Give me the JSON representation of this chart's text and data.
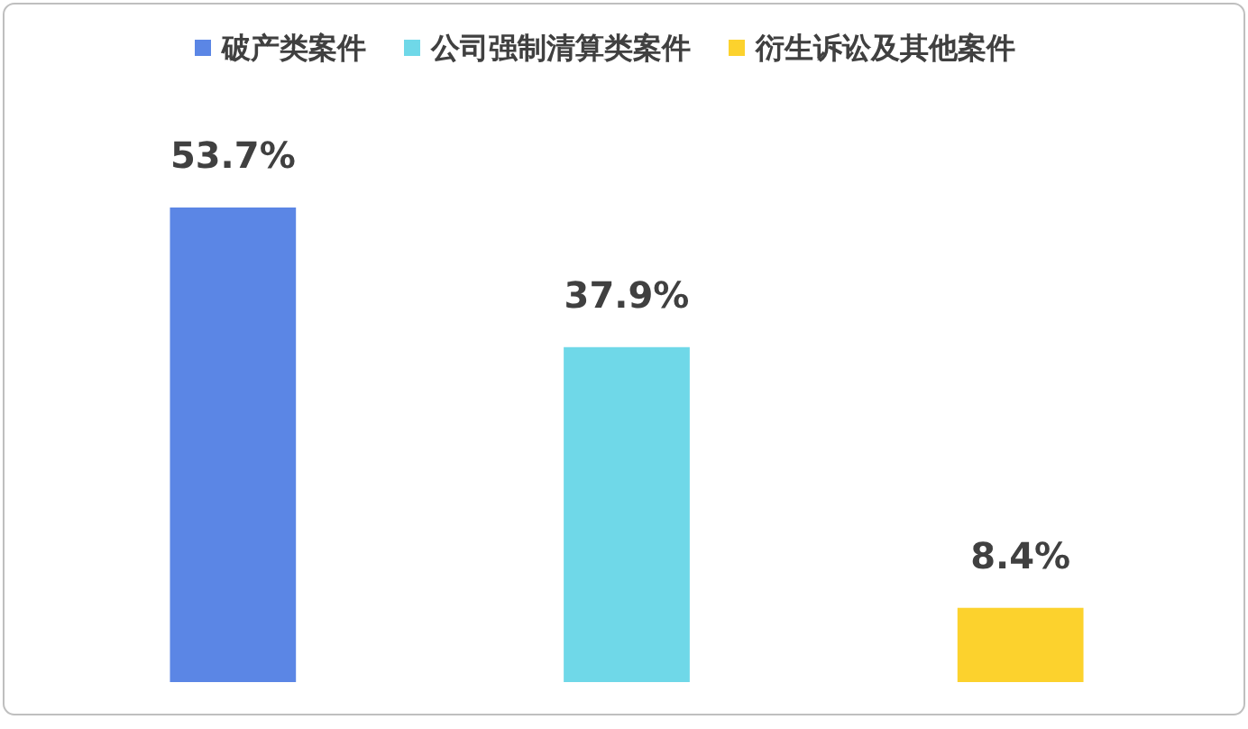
{
  "chart_data": {
    "type": "bar",
    "categories": [
      null,
      null,
      null
    ],
    "stacked": true,
    "legend": "top",
    "series": [
      {
        "name": "破产类案件",
        "color": "#5b86e5",
        "values": [
          53.7,
          null,
          null
        ],
        "value_labels": [
          "53.7%",
          null,
          null
        ]
      },
      {
        "name": "公司强制清算类案件",
        "color": "#6fd8e8",
        "values": [
          null,
          37.9,
          null
        ],
        "value_labels": [
          null,
          "37.9%",
          null
        ]
      },
      {
        "name": "衍生诉讼及其他案件",
        "color": "#fcd22d",
        "values": [
          null,
          null,
          8.4
        ],
        "value_labels": [
          null,
          null,
          "8.4%"
        ]
      }
    ]
  }
}
